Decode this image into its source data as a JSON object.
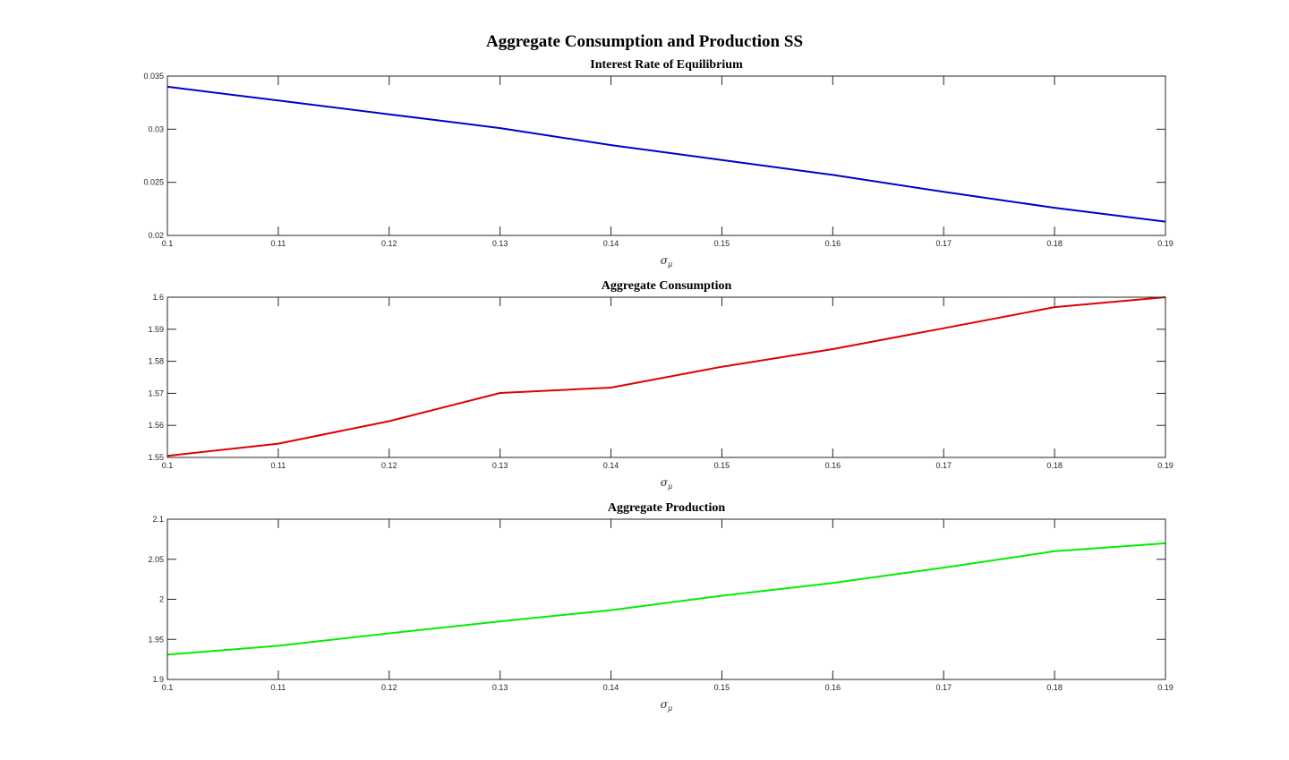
{
  "figure": {
    "suptitle": "Aggregate Consumption and Production SS"
  },
  "chart_data": [
    {
      "type": "line",
      "title": "Interest Rate of Equilibrium",
      "xlabel": "σ",
      "xlabel_subscript": "μ",
      "ylabel": "",
      "x": [
        0.1,
        0.11,
        0.12,
        0.13,
        0.14,
        0.15,
        0.16,
        0.17,
        0.18,
        0.19
      ],
      "xlim": [
        0.1,
        0.19
      ],
      "xticks": [
        "0.1",
        "0.11",
        "0.12",
        "0.13",
        "0.14",
        "0.15",
        "0.16",
        "0.17",
        "0.18",
        "0.19"
      ],
      "ylim": [
        0.02,
        0.035
      ],
      "yticks": [
        {
          "value": 0.02,
          "label": "0.02"
        },
        {
          "value": 0.025,
          "label": "0.025"
        },
        {
          "value": 0.03,
          "label": "0.03"
        },
        {
          "value": 0.035,
          "label": "0.035"
        }
      ],
      "grid": false,
      "series": [
        {
          "color": "#0000cc",
          "values": [
            0.034,
            0.0327,
            0.0314,
            0.0301,
            0.0285,
            0.0271,
            0.0257,
            0.0241,
            0.0226,
            0.0213
          ]
        }
      ]
    },
    {
      "type": "line",
      "title": "Aggregate Consumption",
      "xlabel": "σ",
      "xlabel_subscript": "μ",
      "ylabel": "",
      "x": [
        0.1,
        0.11,
        0.12,
        0.13,
        0.14,
        0.15,
        0.16,
        0.17,
        0.18,
        0.19
      ],
      "xlim": [
        0.1,
        0.19
      ],
      "xticks": [
        "0.1",
        "0.11",
        "0.12",
        "0.13",
        "0.14",
        "0.15",
        "0.16",
        "0.17",
        "0.18",
        "0.19"
      ],
      "ylim": [
        1.55,
        1.6
      ],
      "yticks": [
        {
          "value": 1.55,
          "label": "1.55"
        },
        {
          "value": 1.56,
          "label": "1.56"
        },
        {
          "value": 1.57,
          "label": "1.57"
        },
        {
          "value": 1.58,
          "label": "1.58"
        },
        {
          "value": 1.59,
          "label": "1.59"
        },
        {
          "value": 1.6,
          "label": "1.6"
        }
      ],
      "grid": false,
      "series": [
        {
          "color": "#dd0000",
          "values": [
            1.5505,
            1.5543,
            1.5613,
            1.5701,
            1.5718,
            1.5783,
            1.5838,
            1.5903,
            1.5969,
            1.6
          ]
        }
      ]
    },
    {
      "type": "line",
      "title": "Aggregate Production",
      "xlabel": "σ",
      "xlabel_subscript": "μ",
      "ylabel": "",
      "x": [
        0.1,
        0.11,
        0.12,
        0.13,
        0.14,
        0.15,
        0.16,
        0.17,
        0.18,
        0.19
      ],
      "xlim": [
        0.1,
        0.19
      ],
      "xticks": [
        "0.1",
        "0.11",
        "0.12",
        "0.13",
        "0.14",
        "0.15",
        "0.16",
        "0.17",
        "0.18",
        "0.19"
      ],
      "ylim": [
        1.9,
        2.1
      ],
      "yticks": [
        {
          "value": 1.9,
          "label": "1.9"
        },
        {
          "value": 1.95,
          "label": "1.95"
        },
        {
          "value": 2.0,
          "label": "2"
        },
        {
          "value": 2.05,
          "label": "2.05"
        },
        {
          "value": 2.1,
          "label": "2.1"
        }
      ],
      "grid": false,
      "series": [
        {
          "color": "#00ee00",
          "values": [
            1.931,
            1.942,
            1.9575,
            1.9725,
            1.9865,
            2.0045,
            2.0205,
            2.0395,
            2.06,
            2.07
          ]
        }
      ]
    }
  ]
}
